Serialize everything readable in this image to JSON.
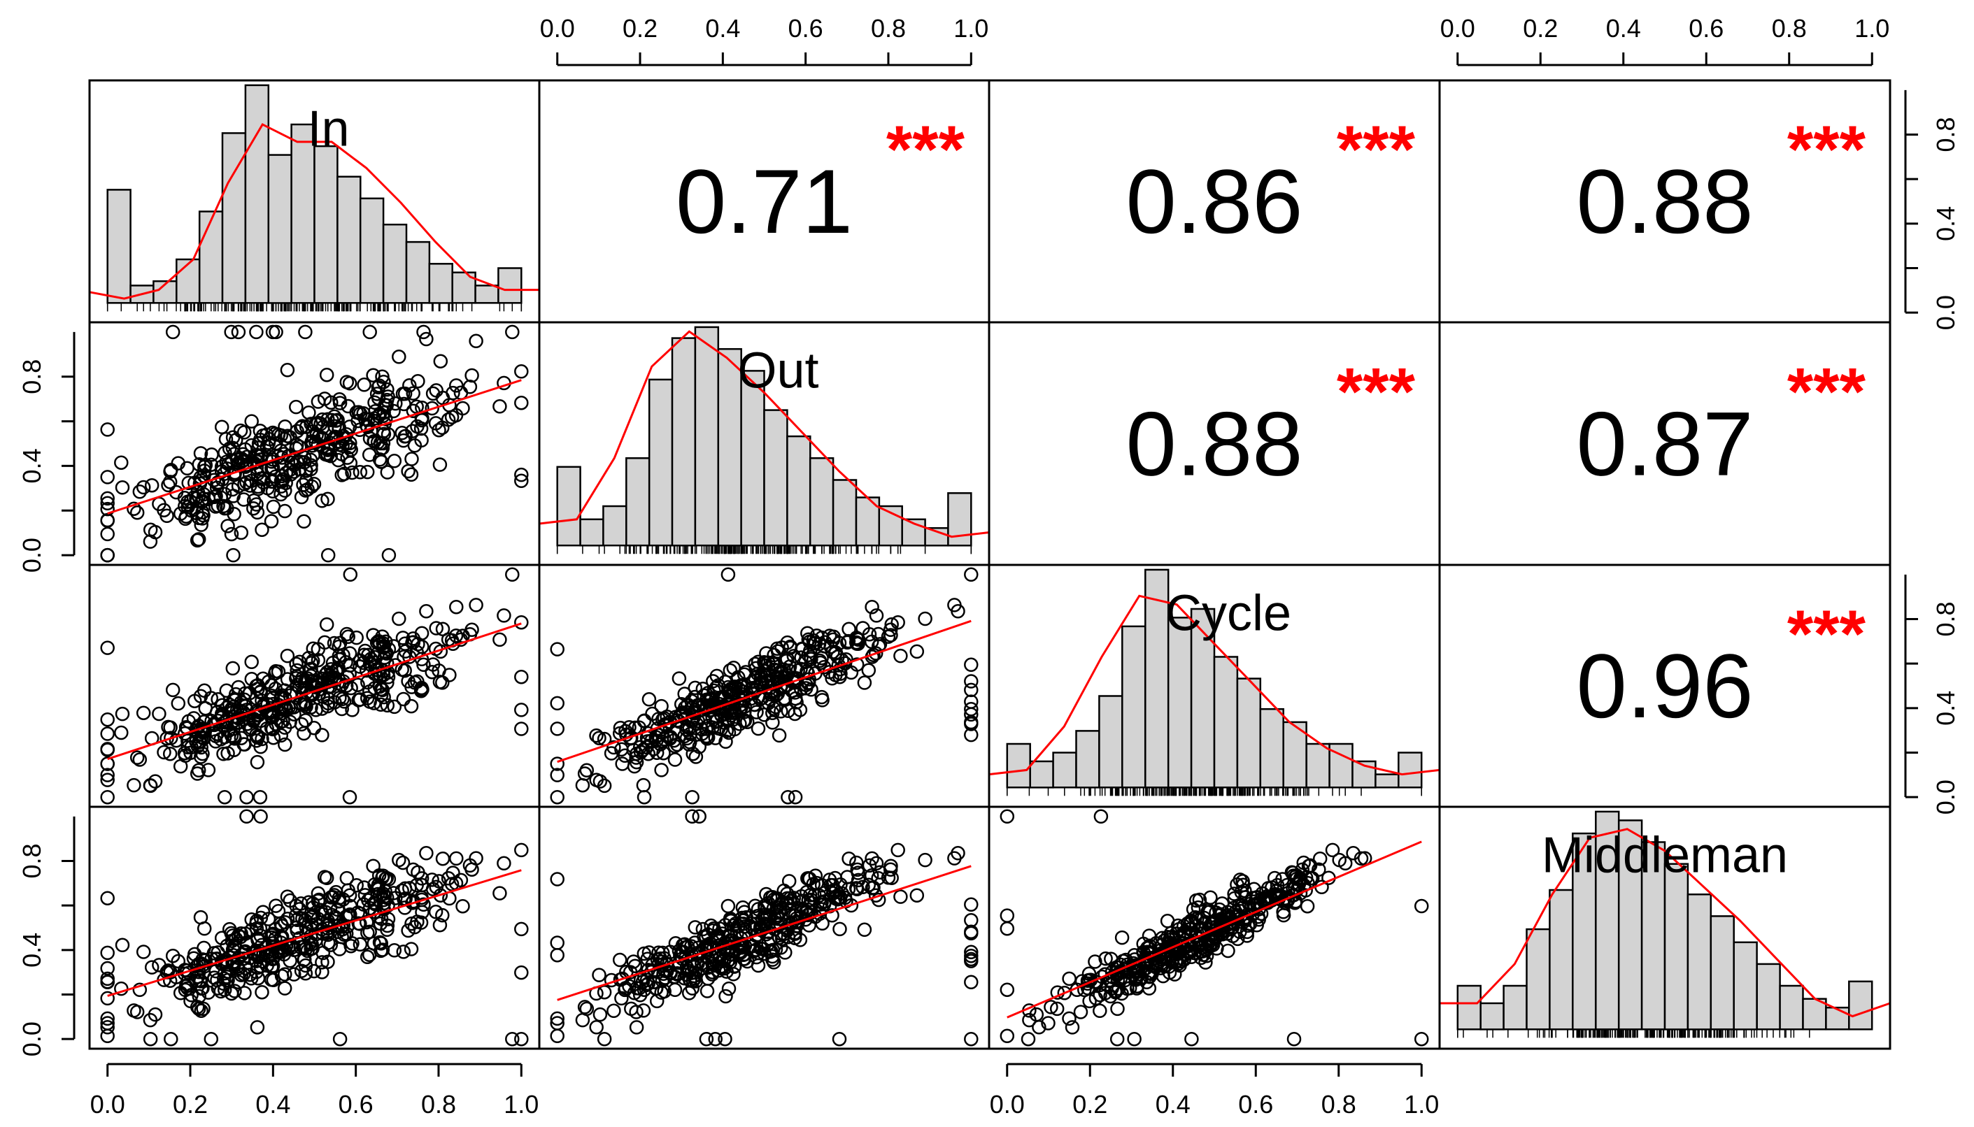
{
  "chart_data": {
    "type": "scatter-matrix",
    "variables": [
      "In",
      "Out",
      "Cycle",
      "Middleman"
    ],
    "axis_range": [
      0.0,
      1.0
    ],
    "tick_values": [
      0.0,
      0.2,
      0.4,
      0.6,
      0.8,
      1.0
    ],
    "tick_labels": [
      "0.0",
      "0.2",
      "0.4",
      "0.6",
      "0.8",
      "1.0"
    ],
    "correlations": [
      {
        "row": 0,
        "col": 1,
        "value": "0.71",
        "stars": "***"
      },
      {
        "row": 0,
        "col": 2,
        "value": "0.86",
        "stars": "***"
      },
      {
        "row": 0,
        "col": 3,
        "value": "0.88",
        "stars": "***"
      },
      {
        "row": 1,
        "col": 2,
        "value": "0.88",
        "stars": "***"
      },
      {
        "row": 1,
        "col": 3,
        "value": "0.87",
        "stars": "***"
      },
      {
        "row": 2,
        "col": 3,
        "value": "0.96",
        "stars": "***"
      }
    ],
    "histograms": {
      "In": [
        0.52,
        0.08,
        0.1,
        0.2,
        0.42,
        0.78,
        1.0,
        0.68,
        0.82,
        0.72,
        0.58,
        0.48,
        0.36,
        0.28,
        0.18,
        0.14,
        0.08,
        0.16
      ],
      "Out": [
        0.36,
        0.12,
        0.18,
        0.4,
        0.76,
        0.95,
        1.0,
        0.9,
        0.8,
        0.62,
        0.5,
        0.4,
        0.3,
        0.22,
        0.18,
        0.12,
        0.08,
        0.24
      ],
      "Cycle": [
        0.2,
        0.12,
        0.16,
        0.26,
        0.42,
        0.74,
        1.0,
        0.78,
        0.82,
        0.6,
        0.5,
        0.36,
        0.3,
        0.2,
        0.2,
        0.12,
        0.06,
        0.16
      ],
      "Middleman": [
        0.2,
        0.12,
        0.2,
        0.46,
        0.64,
        0.9,
        1.0,
        0.96,
        0.86,
        0.76,
        0.62,
        0.52,
        0.4,
        0.3,
        0.2,
        0.14,
        0.1,
        0.22
      ]
    },
    "density": {
      "In": [
        0.05,
        0.02,
        0.06,
        0.2,
        0.55,
        0.82,
        0.74,
        0.74,
        0.62,
        0.46,
        0.28,
        0.12,
        0.06,
        0.06
      ],
      "Out": [
        0.1,
        0.12,
        0.4,
        0.82,
        0.98,
        0.86,
        0.7,
        0.52,
        0.34,
        0.18,
        0.1,
        0.04,
        0.06
      ],
      "Cycle": [
        0.06,
        0.08,
        0.28,
        0.6,
        0.88,
        0.84,
        0.66,
        0.48,
        0.3,
        0.18,
        0.1,
        0.06,
        0.08
      ],
      "Middleman": [
        0.12,
        0.12,
        0.3,
        0.62,
        0.88,
        0.92,
        0.82,
        0.66,
        0.5,
        0.32,
        0.14,
        0.06,
        0.12
      ]
    },
    "point_count": 420,
    "line_color": "#ff0000",
    "bar_fill": "#d3d3d3",
    "star_color": "#ff0000"
  }
}
